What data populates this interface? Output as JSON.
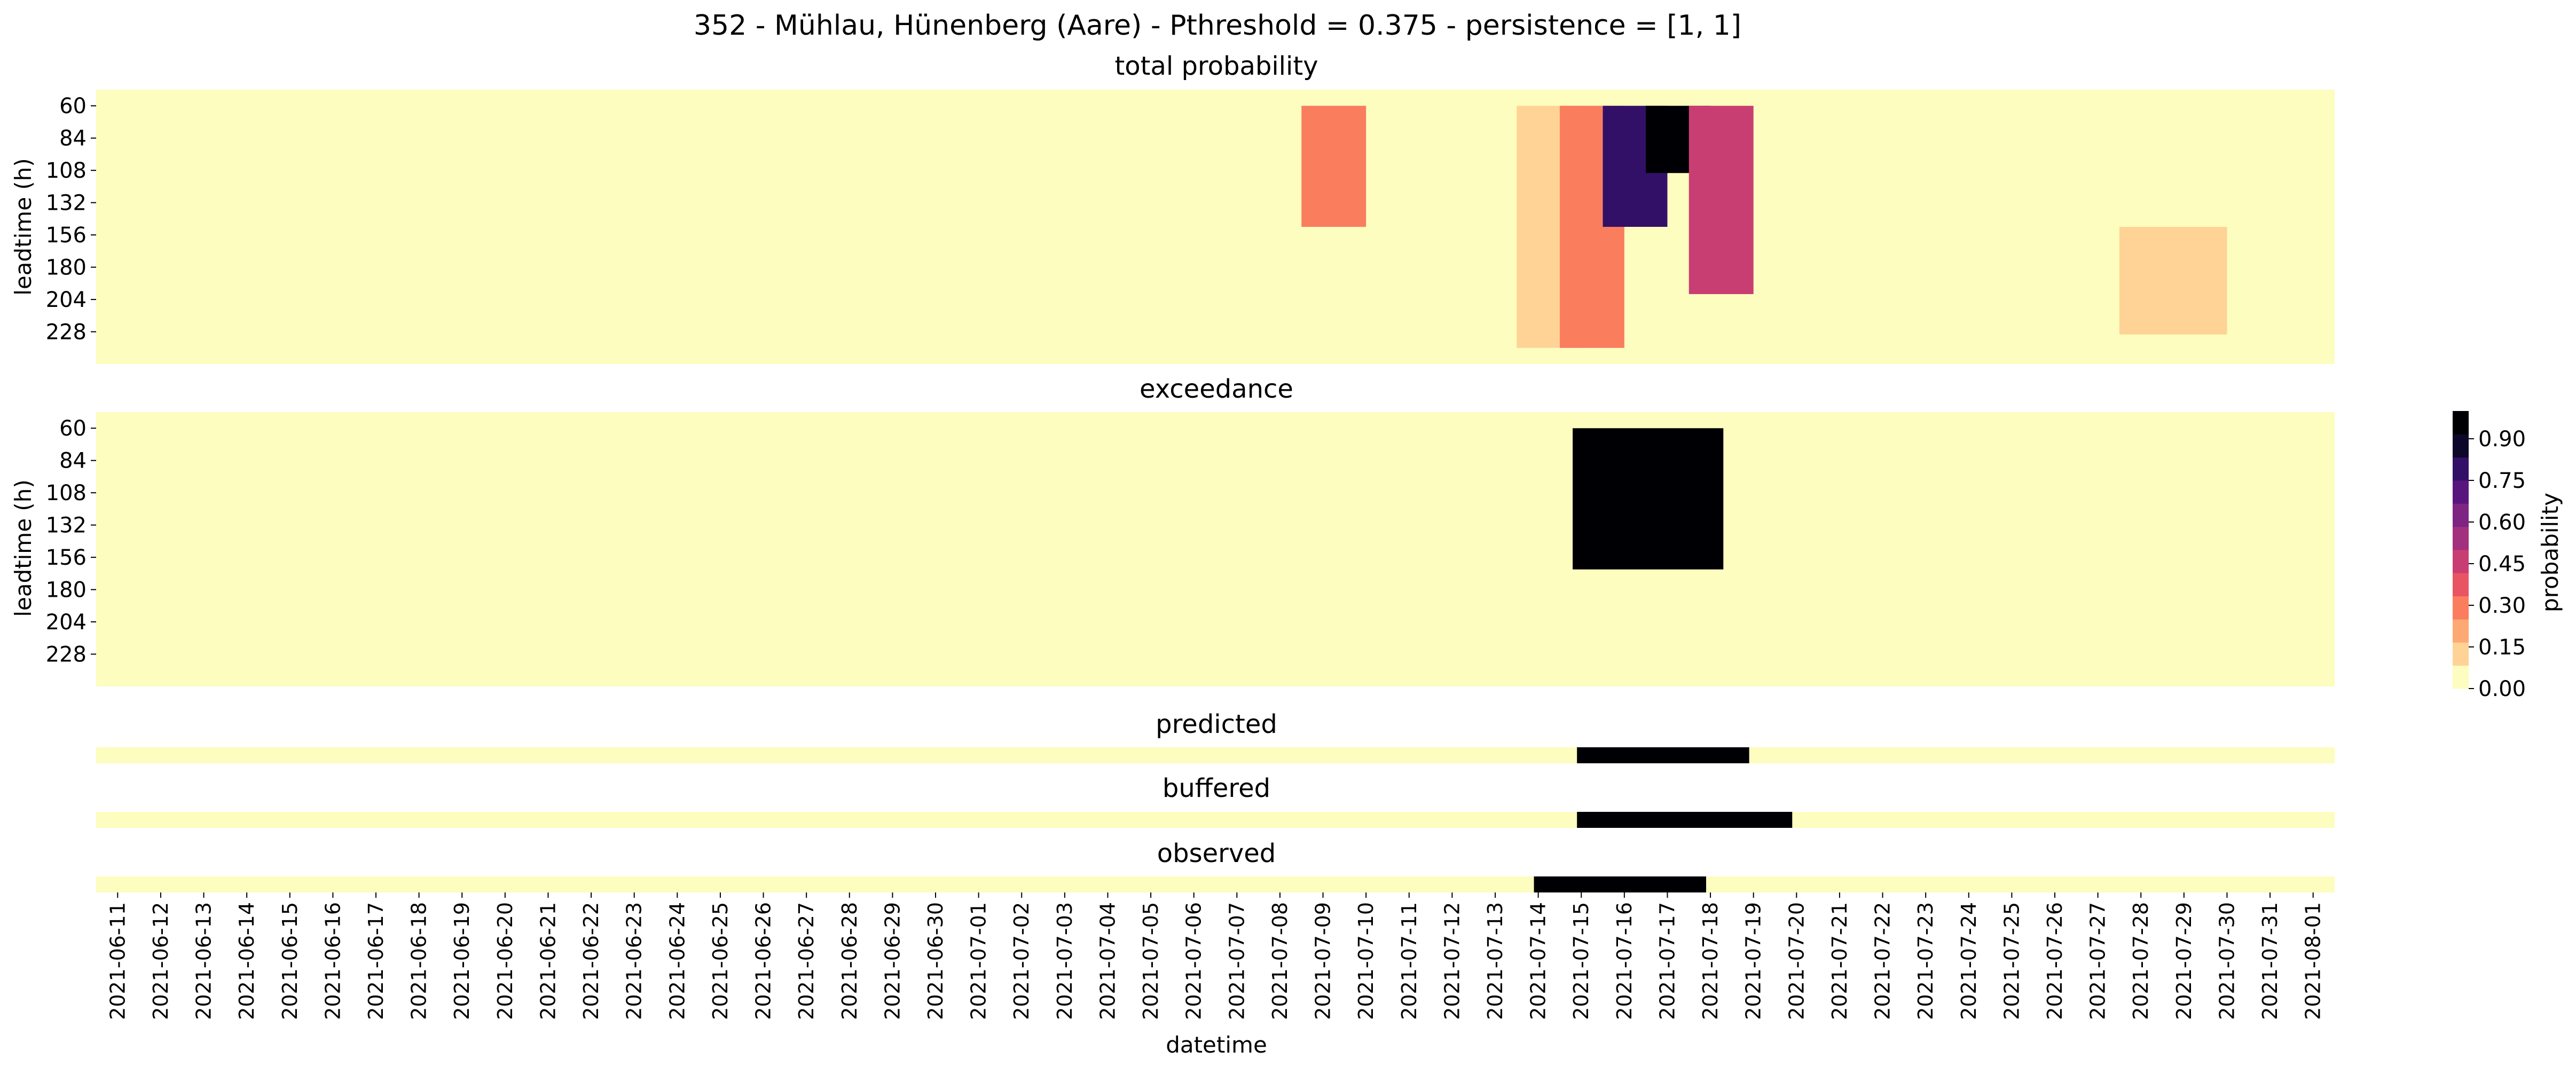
{
  "figure": {
    "title": "352 - Mühlau, Hünenberg (Aare) - Pthreshold = 0.375 - persistence = [1, 1]",
    "colorbar": {
      "label": "probability",
      "ticks": [
        "0.00",
        "0.15",
        "0.30",
        "0.45",
        "0.60",
        "0.75",
        "0.90"
      ],
      "colors": [
        "#fcfdbf",
        "#fed395",
        "#fea973",
        "#fa7d5e",
        "#e95462",
        "#c83e73",
        "#a3307e",
        "#7e2482",
        "#59157e",
        "#331067",
        "#0d0829",
        "#000004"
      ]
    },
    "xlabel": "datetime",
    "x_tick_labels": [
      "2021-06-11",
      "2021-06-12",
      "2021-06-13",
      "2021-06-14",
      "2021-06-15",
      "2021-06-16",
      "2021-06-17",
      "2021-06-18",
      "2021-06-19",
      "2021-06-20",
      "2021-06-21",
      "2021-06-22",
      "2021-06-23",
      "2021-06-24",
      "2021-06-25",
      "2021-06-26",
      "2021-06-27",
      "2021-06-28",
      "2021-06-29",
      "2021-06-30",
      "2021-07-01",
      "2021-07-02",
      "2021-07-03",
      "2021-07-04",
      "2021-07-05",
      "2021-07-06",
      "2021-07-07",
      "2021-07-08",
      "2021-07-09",
      "2021-07-10",
      "2021-07-11",
      "2021-07-12",
      "2021-07-13",
      "2021-07-14",
      "2021-07-15",
      "2021-07-16",
      "2021-07-17",
      "2021-07-18",
      "2021-07-19",
      "2021-07-20",
      "2021-07-21",
      "2021-07-22",
      "2021-07-23",
      "2021-07-24",
      "2021-07-25",
      "2021-07-26",
      "2021-07-27",
      "2021-07-28",
      "2021-07-29",
      "2021-07-30",
      "2021-07-31",
      "2021-08-01"
    ]
  },
  "chart_data": [
    {
      "type": "heatmap",
      "title": "total probability",
      "ylabel": "leadtime (h)",
      "y_tick_labels": [
        "60",
        "84",
        "108",
        "132",
        "156",
        "180",
        "204",
        "228"
      ],
      "color_range": [
        0,
        1
      ],
      "regions": [
        {
          "x_start": "2021-07-09",
          "x_end": "2021-07-10",
          "lead_from": 60,
          "lead_to": 150,
          "p": 0.3
        },
        {
          "x_start": "2021-07-14",
          "x_end": "2021-07-15",
          "lead_from": 60,
          "lead_to": 240,
          "p": 0.15
        },
        {
          "x_start": "2021-07-15",
          "x_end": "2021-07-16",
          "lead_from": 60,
          "lead_to": 240,
          "p": 0.25
        },
        {
          "x_start": "2021-07-16",
          "x_end": "2021-07-17",
          "lead_from": 60,
          "lead_to": 150,
          "p": 0.75
        },
        {
          "x_start": "2021-07-17",
          "x_end": "2021-07-18",
          "lead_from": 60,
          "lead_to": 110,
          "p": 0.95
        },
        {
          "x_start": "2021-07-18",
          "x_end": "2021-07-19",
          "lead_from": 60,
          "lead_to": 200,
          "p": 0.45
        },
        {
          "x_start": "2021-07-28",
          "x_end": "2021-07-30",
          "lead_from": 150,
          "lead_to": 230,
          "p": 0.15
        }
      ]
    },
    {
      "type": "heatmap",
      "title": "exceedance",
      "ylabel": "leadtime (h)",
      "y_tick_labels": [
        "60",
        "84",
        "108",
        "132",
        "156",
        "180",
        "204",
        "228"
      ],
      "values_meaning": "1 = exceeds threshold, 0 = no exceedance",
      "exceed_x_range": [
        "2021-07-15",
        "2021-07-19"
      ],
      "exceed_lead_range": [
        60,
        165
      ]
    },
    {
      "type": "heatmap",
      "title": "predicted",
      "segments": [
        {
          "start": "2021-07-15",
          "end": "2021-07-19",
          "value": 1
        }
      ]
    },
    {
      "type": "heatmap",
      "title": "buffered",
      "segments": [
        {
          "start": "2021-07-15",
          "end": "2021-07-20",
          "value": 1
        }
      ]
    },
    {
      "type": "heatmap",
      "title": "observed",
      "segments": [
        {
          "start": "2021-07-14",
          "end": "2021-07-18",
          "value": 1
        }
      ]
    }
  ]
}
